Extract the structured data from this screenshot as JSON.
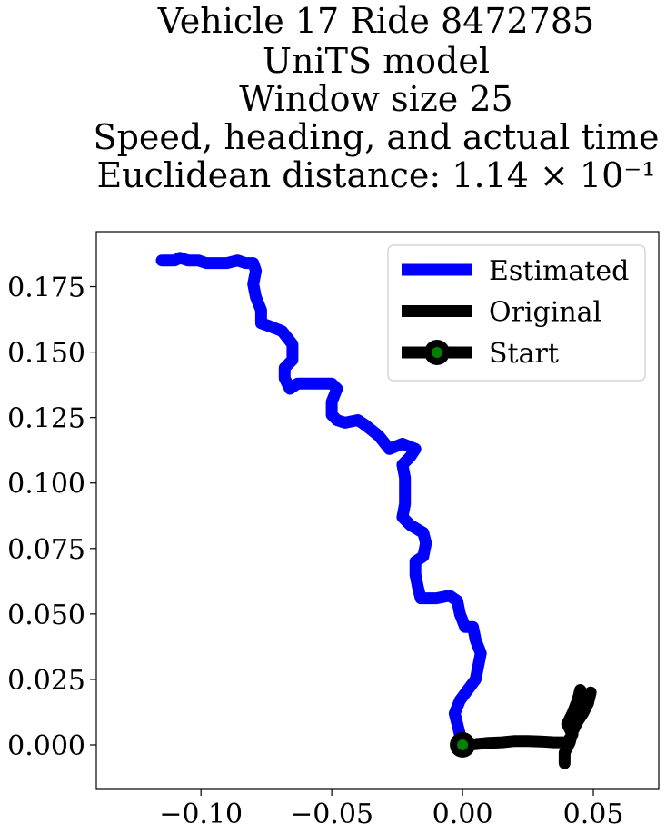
{
  "chart_data": {
    "type": "line",
    "title_lines": [
      "Vehicle 17 Ride 8472785",
      "UniTS model",
      "Window size 25",
      "Speed, heading, and actual time",
      "Euclidean distance: 1.14 × 10⁻¹"
    ],
    "xlabel": "",
    "ylabel": "",
    "xlim": [
      -0.14,
      0.075
    ],
    "ylim": [
      -0.017,
      0.196
    ],
    "xticks": [
      -0.1,
      -0.05,
      0.0,
      0.05
    ],
    "xtick_labels": [
      "−0.10",
      "−0.05",
      "0.00",
      "0.05"
    ],
    "yticks": [
      0.0,
      0.025,
      0.05,
      0.075,
      0.1,
      0.125,
      0.15,
      0.175
    ],
    "ytick_labels": [
      "0.000",
      "0.025",
      "0.050",
      "0.075",
      "0.100",
      "0.125",
      "0.150",
      "0.175"
    ],
    "grid": false,
    "legend_position": "top-right",
    "legend": [
      {
        "label": "Estimated",
        "color": "#0000ff",
        "marker": "none"
      },
      {
        "label": "Original",
        "color": "#000000",
        "marker": "none"
      },
      {
        "label": "Start",
        "color": "#000000",
        "marker": "circle",
        "marker_face": "#008000"
      }
    ],
    "series": [
      {
        "name": "Estimated",
        "color": "#0000ff",
        "points": [
          [
            0.0,
            0.0
          ],
          [
            -0.001,
            0.004
          ],
          [
            -0.002,
            0.008
          ],
          [
            -0.003,
            0.012
          ],
          [
            -0.001,
            0.017
          ],
          [
            0.002,
            0.021
          ],
          [
            0.005,
            0.025
          ],
          [
            0.006,
            0.03
          ],
          [
            0.007,
            0.035
          ],
          [
            0.005,
            0.04
          ],
          [
            0.004,
            0.045
          ],
          [
            0.001,
            0.045
          ],
          [
            -0.001,
            0.05
          ],
          [
            -0.002,
            0.055
          ],
          [
            -0.005,
            0.057
          ],
          [
            -0.01,
            0.056
          ],
          [
            -0.016,
            0.056
          ],
          [
            -0.017,
            0.06
          ],
          [
            -0.018,
            0.065
          ],
          [
            -0.018,
            0.07
          ],
          [
            -0.015,
            0.072
          ],
          [
            -0.014,
            0.077
          ],
          [
            -0.015,
            0.081
          ],
          [
            -0.02,
            0.084
          ],
          [
            -0.023,
            0.087
          ],
          [
            -0.022,
            0.092
          ],
          [
            -0.022,
            0.097
          ],
          [
            -0.022,
            0.102
          ],
          [
            -0.023,
            0.107
          ],
          [
            -0.02,
            0.11
          ],
          [
            -0.018,
            0.113
          ],
          [
            -0.023,
            0.115
          ],
          [
            -0.028,
            0.113
          ],
          [
            -0.032,
            0.118
          ],
          [
            -0.037,
            0.122
          ],
          [
            -0.04,
            0.124
          ],
          [
            -0.045,
            0.123
          ],
          [
            -0.048,
            0.124
          ],
          [
            -0.05,
            0.126
          ],
          [
            -0.05,
            0.131
          ],
          [
            -0.048,
            0.136
          ],
          [
            -0.05,
            0.138
          ],
          [
            -0.056,
            0.138
          ],
          [
            -0.06,
            0.138
          ],
          [
            -0.063,
            0.138
          ],
          [
            -0.066,
            0.136
          ],
          [
            -0.068,
            0.14
          ],
          [
            -0.068,
            0.144
          ],
          [
            -0.065,
            0.147
          ],
          [
            -0.065,
            0.153
          ],
          [
            -0.069,
            0.158
          ],
          [
            -0.074,
            0.16
          ],
          [
            -0.077,
            0.161
          ],
          [
            -0.077,
            0.166
          ],
          [
            -0.079,
            0.171
          ],
          [
            -0.08,
            0.176
          ],
          [
            -0.079,
            0.181
          ],
          [
            -0.08,
            0.184
          ],
          [
            -0.083,
            0.184
          ],
          [
            -0.086,
            0.185
          ],
          [
            -0.09,
            0.184
          ],
          [
            -0.095,
            0.184
          ],
          [
            -0.098,
            0.184
          ],
          [
            -0.101,
            0.185
          ],
          [
            -0.105,
            0.185
          ],
          [
            -0.108,
            0.186
          ],
          [
            -0.11,
            0.185
          ],
          [
            -0.115,
            0.185
          ]
        ]
      },
      {
        "name": "Original",
        "color": "#000000",
        "points": [
          [
            0.0,
            0.0
          ],
          [
            0.005,
            0.0003
          ],
          [
            0.01,
            0.0008
          ],
          [
            0.015,
            0.001
          ],
          [
            0.02,
            0.0015
          ],
          [
            0.025,
            0.0015
          ],
          [
            0.03,
            0.0013
          ],
          [
            0.035,
            0.001
          ],
          [
            0.04,
            0.001
          ],
          [
            0.042,
            0.004
          ],
          [
            0.04,
            0.008
          ],
          [
            0.042,
            0.012
          ],
          [
            0.044,
            0.017
          ],
          [
            0.045,
            0.021
          ],
          [
            0.047,
            0.018
          ],
          [
            0.049,
            0.02
          ],
          [
            0.048,
            0.016
          ],
          [
            0.046,
            0.012
          ],
          [
            0.044,
            0.009
          ],
          [
            0.042,
            0.005
          ],
          [
            0.041,
            0.001
          ],
          [
            0.039,
            -0.003
          ],
          [
            0.039,
            -0.007
          ]
        ]
      }
    ],
    "start_point": {
      "name": "Start",
      "x": 0.0,
      "y": 0.0,
      "face_color": "#008000",
      "edge_color": "#000000"
    }
  }
}
